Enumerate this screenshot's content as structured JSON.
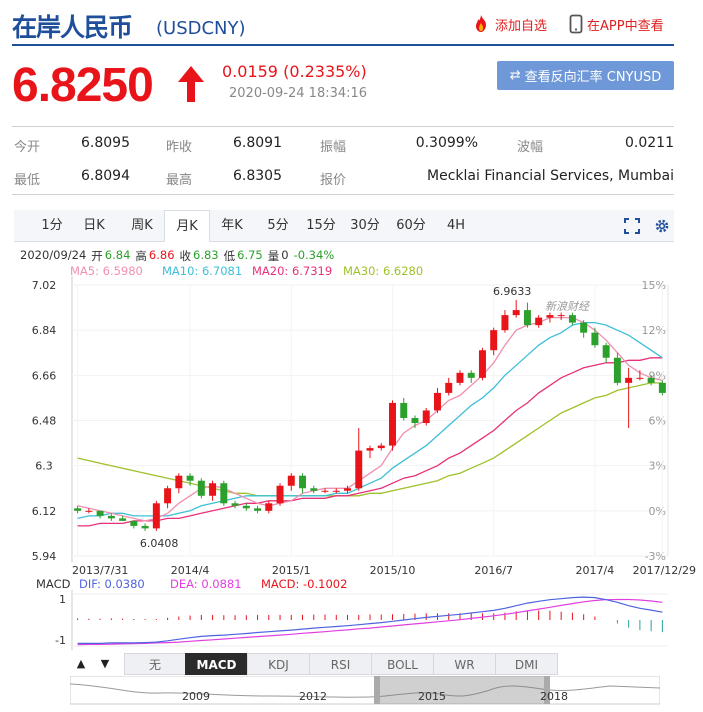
{
  "header": {
    "title": "在岸人民币",
    "symbol": "(USDCNY)",
    "add_favorite": "添加自选",
    "view_in_app": "在APP中查看",
    "price": "6.8250",
    "change": "0.0159 (0.2335%)",
    "timestamp": "2020-09-24 18:34:16",
    "reverse_button": "查看反向汇率 CNYUSD"
  },
  "stats": [
    {
      "label": "今开",
      "value": "6.8095"
    },
    {
      "label": "昨收",
      "value": "6.8091"
    },
    {
      "label": "振幅",
      "value": "0.3099%"
    },
    {
      "label": "波幅",
      "value": "0.0211"
    },
    {
      "label": "最低",
      "value": "6.8094"
    },
    {
      "label": "最高",
      "value": "6.8305"
    },
    {
      "label": "报价",
      "value": "Mecklai Financial Services, Mumbai"
    }
  ],
  "toolbar": {
    "tabs": [
      "1分",
      "日K",
      "周K",
      "月K",
      "年K",
      "5分",
      "15分",
      "30分",
      "60分",
      "4H"
    ],
    "active": "月K"
  },
  "info": {
    "date": "2020/09/24",
    "open_label": "开",
    "open": "6.84",
    "high_label": "高",
    "high": "6.86",
    "close_label": "收",
    "close": "6.83",
    "low_label": "低",
    "low": "6.75",
    "vol_label": "量",
    "vol": "0",
    "pct": "-0.34%",
    "ma5": "MA5: 6.5980",
    "ma10": "MA10: 6.7081",
    "ma20": "MA20: 6.7319",
    "ma30": "MA30: 6.6280"
  },
  "macd_info": {
    "label": "MACD",
    "dif": "DIF: 0.0380",
    "dea": "DEA: 0.0881",
    "macd": "MACD: -0.1002"
  },
  "watermark": "新浪财经",
  "colors": {
    "up": "#e8141a",
    "down": "#2ca02c",
    "ma5": "#f08fb0",
    "ma10": "#3cbfd8",
    "ma20": "#e8307a",
    "ma30": "#9ec12a",
    "dif": "#4f63e0",
    "dea": "#e040e0"
  },
  "chart_data": {
    "type": "candlestick",
    "y_ticks": [
      "7.02",
      "6.84",
      "6.66",
      "6.48",
      "6.3",
      "6.12",
      "5.94"
    ],
    "ylim": [
      5.94,
      7.02
    ],
    "pct_ticks": [
      "15%",
      "12%",
      "9%",
      "6%",
      "3%",
      "0%",
      "-3%"
    ],
    "x_ticks": [
      "2013/7/31",
      "2014/4",
      "2015/1",
      "2015/10",
      "2016/7",
      "2017/4",
      "2017/12/29"
    ],
    "max_label": "6.9633",
    "min_label": "6.0408",
    "candles": [
      [
        6.13,
        6.12,
        6.14,
        6.11
      ],
      [
        6.12,
        6.12,
        6.13,
        6.11
      ],
      [
        6.12,
        6.1,
        6.12,
        6.09
      ],
      [
        6.1,
        6.09,
        6.11,
        6.08
      ],
      [
        6.09,
        6.08,
        6.1,
        6.08
      ],
      [
        6.08,
        6.06,
        6.08,
        6.05
      ],
      [
        6.06,
        6.05,
        6.07,
        6.04
      ],
      [
        6.05,
        6.15,
        6.16,
        6.04
      ],
      [
        6.15,
        6.21,
        6.22,
        6.13
      ],
      [
        6.21,
        6.26,
        6.27,
        6.19
      ],
      [
        6.26,
        6.24,
        6.27,
        6.22
      ],
      [
        6.24,
        6.18,
        6.25,
        6.17
      ],
      [
        6.18,
        6.23,
        6.24,
        6.16
      ],
      [
        6.23,
        6.15,
        6.24,
        6.14
      ],
      [
        6.15,
        6.14,
        6.16,
        6.13
      ],
      [
        6.14,
        6.13,
        6.15,
        6.12
      ],
      [
        6.13,
        6.12,
        6.14,
        6.11
      ],
      [
        6.12,
        6.15,
        6.16,
        6.11
      ],
      [
        6.15,
        6.22,
        6.23,
        6.14
      ],
      [
        6.22,
        6.26,
        6.27,
        6.2
      ],
      [
        6.26,
        6.21,
        6.27,
        6.19
      ],
      [
        6.21,
        6.2,
        6.22,
        6.19
      ],
      [
        6.2,
        6.2,
        6.21,
        6.19
      ],
      [
        6.2,
        6.2,
        6.21,
        6.19
      ],
      [
        6.2,
        6.21,
        6.22,
        6.19
      ],
      [
        6.21,
        6.36,
        6.45,
        6.2
      ],
      [
        6.36,
        6.37,
        6.38,
        6.33
      ],
      [
        6.37,
        6.38,
        6.39,
        6.36
      ],
      [
        6.38,
        6.55,
        6.56,
        6.36
      ],
      [
        6.55,
        6.49,
        6.57,
        6.48
      ],
      [
        6.49,
        6.47,
        6.5,
        6.45
      ],
      [
        6.47,
        6.52,
        6.53,
        6.46
      ],
      [
        6.52,
        6.59,
        6.61,
        6.51
      ],
      [
        6.59,
        6.63,
        6.65,
        6.58
      ],
      [
        6.63,
        6.67,
        6.68,
        6.62
      ],
      [
        6.67,
        6.65,
        6.68,
        6.63
      ],
      [
        6.65,
        6.76,
        6.77,
        6.64
      ],
      [
        6.76,
        6.84,
        6.85,
        6.74
      ],
      [
        6.84,
        6.9,
        6.92,
        6.83
      ],
      [
        6.9,
        6.92,
        6.96,
        6.89
      ],
      [
        6.92,
        6.86,
        6.95,
        6.85
      ],
      [
        6.86,
        6.89,
        6.9,
        6.85
      ],
      [
        6.89,
        6.9,
        6.91,
        6.87
      ],
      [
        6.9,
        6.9,
        6.91,
        6.88
      ],
      [
        6.9,
        6.87,
        6.91,
        6.86
      ],
      [
        6.87,
        6.83,
        6.88,
        6.81
      ],
      [
        6.83,
        6.78,
        6.85,
        6.77
      ],
      [
        6.78,
        6.73,
        6.79,
        6.71
      ],
      [
        6.73,
        6.63,
        6.75,
        6.62
      ],
      [
        6.63,
        6.65,
        6.69,
        6.45
      ],
      [
        6.65,
        6.65,
        6.68,
        6.64
      ],
      [
        6.65,
        6.63,
        6.66,
        6.62
      ],
      [
        6.63,
        6.59,
        6.64,
        6.58
      ]
    ],
    "ma5": [
      6.14,
      6.13,
      6.12,
      6.11,
      6.1,
      6.09,
      6.08,
      6.09,
      6.11,
      6.15,
      6.18,
      6.21,
      6.22,
      6.21,
      6.19,
      6.17,
      6.15,
      6.14,
      6.15,
      6.16,
      6.19,
      6.2,
      6.21,
      6.21,
      6.21,
      6.24,
      6.27,
      6.3,
      6.37,
      6.43,
      6.46,
      6.48,
      6.52,
      6.56,
      6.58,
      6.62,
      6.66,
      6.71,
      6.78,
      6.84,
      6.86,
      6.87,
      6.89,
      6.89,
      6.89,
      6.87,
      6.84,
      6.8,
      6.75,
      6.7,
      6.67,
      6.65,
      6.64
    ],
    "ma10": [
      6.09,
      6.1,
      6.1,
      6.11,
      6.11,
      6.1,
      6.1,
      6.1,
      6.1,
      6.11,
      6.12,
      6.14,
      6.15,
      6.16,
      6.17,
      6.18,
      6.18,
      6.18,
      6.18,
      6.18,
      6.18,
      6.18,
      6.18,
      6.19,
      6.19,
      6.21,
      6.23,
      6.25,
      6.29,
      6.32,
      6.35,
      6.38,
      6.42,
      6.46,
      6.5,
      6.54,
      6.57,
      6.61,
      6.66,
      6.7,
      6.74,
      6.78,
      6.81,
      6.83,
      6.86,
      6.87,
      6.87,
      6.86,
      6.84,
      6.82,
      6.79,
      6.76,
      6.73
    ],
    "ma20": [
      6.06,
      6.06,
      6.07,
      6.07,
      6.07,
      6.08,
      6.08,
      6.08,
      6.09,
      6.09,
      6.1,
      6.11,
      6.12,
      6.13,
      6.14,
      6.15,
      6.15,
      6.16,
      6.16,
      6.16,
      6.17,
      6.17,
      6.17,
      6.18,
      6.18,
      6.19,
      6.2,
      6.21,
      6.23,
      6.25,
      6.26,
      6.28,
      6.3,
      6.33,
      6.35,
      6.38,
      6.41,
      6.44,
      6.48,
      6.52,
      6.55,
      6.59,
      6.62,
      6.65,
      6.67,
      6.69,
      6.7,
      6.71,
      6.71,
      6.72,
      6.72,
      6.73,
      6.73
    ],
    "ma30": [
      6.33,
      6.32,
      6.31,
      6.3,
      6.29,
      6.28,
      6.27,
      6.26,
      6.25,
      6.24,
      6.23,
      6.22,
      6.21,
      6.2,
      6.19,
      6.19,
      6.18,
      6.18,
      6.18,
      6.18,
      6.18,
      6.18,
      6.18,
      6.18,
      6.18,
      6.18,
      6.19,
      6.19,
      6.2,
      6.21,
      6.22,
      6.23,
      6.24,
      6.26,
      6.27,
      6.29,
      6.31,
      6.33,
      6.36,
      6.39,
      6.42,
      6.45,
      6.48,
      6.51,
      6.53,
      6.55,
      6.57,
      6.58,
      6.6,
      6.61,
      6.62,
      6.63,
      6.63
    ],
    "macd": {
      "ylim": [
        -1,
        1
      ],
      "ticks": [
        "1",
        "-1"
      ],
      "dif": [
        -0.9,
        -0.9,
        -0.9,
        -0.88,
        -0.88,
        -0.88,
        -0.87,
        -0.85,
        -0.8,
        -0.74,
        -0.68,
        -0.63,
        -0.6,
        -0.58,
        -0.55,
        -0.52,
        -0.48,
        -0.45,
        -0.42,
        -0.39,
        -0.35,
        -0.31,
        -0.28,
        -0.25,
        -0.22,
        -0.18,
        -0.14,
        -0.1,
        -0.05,
        0.0,
        0.05,
        0.1,
        0.14,
        0.18,
        0.22,
        0.27,
        0.32,
        0.37,
        0.45,
        0.55,
        0.65,
        0.72,
        0.78,
        0.82,
        0.86,
        0.88,
        0.86,
        0.78,
        0.68,
        0.55,
        0.45,
        0.38,
        0.3
      ],
      "dea": [
        -0.95,
        -0.94,
        -0.94,
        -0.93,
        -0.92,
        -0.91,
        -0.9,
        -0.88,
        -0.87,
        -0.85,
        -0.82,
        -0.79,
        -0.76,
        -0.73,
        -0.7,
        -0.67,
        -0.64,
        -0.61,
        -0.58,
        -0.55,
        -0.51,
        -0.48,
        -0.45,
        -0.41,
        -0.38,
        -0.34,
        -0.31,
        -0.27,
        -0.23,
        -0.19,
        -0.15,
        -0.11,
        -0.07,
        -0.03,
        0.01,
        0.06,
        0.11,
        0.16,
        0.22,
        0.28,
        0.35,
        0.42,
        0.49,
        0.56,
        0.63,
        0.7,
        0.75,
        0.78,
        0.79,
        0.79,
        0.77,
        0.73,
        0.68
      ],
      "hist": [
        0.1,
        0.08,
        0.08,
        0.1,
        0.08,
        0.06,
        0.06,
        0.06,
        0.14,
        0.22,
        0.28,
        0.32,
        0.32,
        0.3,
        0.3,
        0.3,
        0.32,
        0.32,
        0.32,
        0.32,
        0.32,
        0.34,
        0.34,
        0.32,
        0.32,
        0.32,
        0.34,
        0.34,
        0.36,
        0.38,
        0.4,
        0.42,
        0.42,
        0.42,
        0.42,
        0.42,
        0.42,
        0.42,
        0.46,
        0.54,
        0.6,
        0.6,
        0.58,
        0.52,
        0.46,
        0.36,
        0.22,
        0.0,
        -0.22,
        -0.48,
        -0.64,
        -0.7,
        -0.76
      ]
    }
  },
  "indicator_tabs": [
    "无",
    "MACD",
    "KDJ",
    "RSI",
    "BOLL",
    "WR",
    "DMI"
  ],
  "active_indicator": "MACD",
  "timeline_labels": [
    "2009",
    "2012",
    "2015",
    "2018"
  ]
}
